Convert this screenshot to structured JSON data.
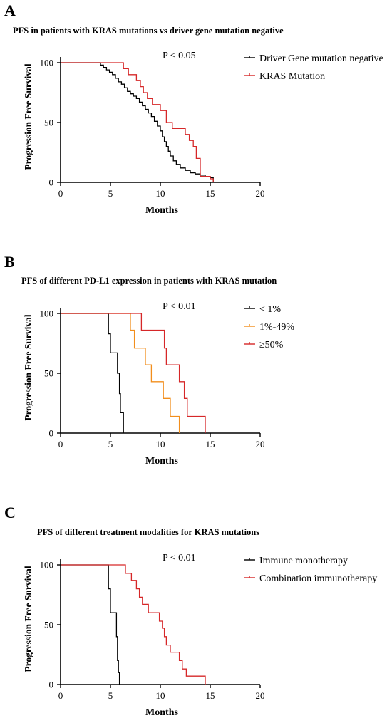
{
  "chart_data": [
    {
      "letter": "A",
      "type": "line",
      "subtype": "kaplan-meier step",
      "title": "PFS in patients with KRAS mutations vs driver gene mutation negative",
      "xlabel": "Months",
      "ylabel": "Progression Free Survival",
      "xlim": [
        0,
        20
      ],
      "ylim": [
        0,
        100
      ],
      "xticks": [
        "0",
        "5",
        "10",
        "15",
        "20"
      ],
      "yticks": [
        "0",
        "50",
        "100"
      ],
      "annotation": "P < 0.05",
      "legend_position": "top-right",
      "series": [
        {
          "name": "Driver Gene mutation negative",
          "color": "#000000",
          "x": [
            0,
            4.0,
            4.3,
            4.6,
            4.9,
            5.2,
            5.5,
            5.8,
            6.1,
            6.4,
            6.7,
            7.0,
            7.3,
            7.6,
            7.9,
            8.2,
            8.5,
            8.8,
            9.1,
            9.4,
            9.7,
            10.0,
            10.2,
            10.4,
            10.6,
            10.8,
            11.0,
            11.3,
            11.6,
            12.0,
            12.5,
            13.0,
            13.5,
            14.0,
            14.5,
            15.0,
            15.3
          ],
          "y": [
            100,
            98,
            96,
            94,
            92,
            90,
            87,
            84,
            82,
            79,
            76,
            74,
            72,
            70,
            67,
            64,
            61,
            58,
            55,
            51,
            47,
            43,
            38,
            34,
            30,
            26,
            22,
            18,
            15,
            12,
            10,
            8,
            7,
            6,
            5,
            4,
            0
          ]
        },
        {
          "name": "KRAS Mutation",
          "color": "#d62728",
          "x": [
            0,
            6.3,
            6.8,
            7.6,
            8.0,
            8.3,
            8.7,
            9.2,
            10.0,
            10.6,
            11.2,
            12.5,
            12.9,
            13.3,
            13.6,
            14.0,
            15.0,
            15.3
          ],
          "y": [
            100,
            95,
            90,
            85,
            80,
            75,
            70,
            65,
            60,
            50,
            45,
            40,
            35,
            30,
            20,
            5,
            3,
            0
          ]
        }
      ]
    },
    {
      "letter": "B",
      "type": "line",
      "subtype": "kaplan-meier step",
      "title": "PFS of different PD-L1 expression in patients with KRAS mutation",
      "xlabel": "Months",
      "ylabel": "Progression Free Survival",
      "xlim": [
        0,
        20
      ],
      "ylim": [
        0,
        100
      ],
      "xticks": [
        "0",
        "5",
        "10",
        "15",
        "20"
      ],
      "yticks": [
        "0",
        "50",
        "100"
      ],
      "annotation": "P < 0.01",
      "legend_position": "top-right",
      "series": [
        {
          "name": "< 1%",
          "color": "#000000",
          "x": [
            0,
            4.8,
            5.0,
            5.7,
            5.9,
            6.0,
            6.3
          ],
          "y": [
            100,
            83,
            67,
            50,
            33,
            17,
            0
          ]
        },
        {
          "name": "1%-49%",
          "color": "#f28e1c",
          "x": [
            0,
            7.0,
            7.4,
            8.5,
            9.1,
            10.3,
            11.0,
            11.9
          ],
          "y": [
            100,
            86,
            71,
            57,
            43,
            29,
            14,
            0
          ]
        },
        {
          "name": "≥50%",
          "color": "#d62728",
          "x": [
            0,
            8.1,
            10.4,
            10.6,
            11.9,
            12.4,
            12.7,
            14.5
          ],
          "y": [
            100,
            86,
            71,
            57,
            43,
            29,
            14,
            0
          ]
        }
      ]
    },
    {
      "letter": "C",
      "type": "line",
      "subtype": "kaplan-meier step",
      "title": "PFS of different treatment modalities for KRAS mutations",
      "xlabel": "Months",
      "ylabel": "Progression Free Survival",
      "xlim": [
        0,
        20
      ],
      "ylim": [
        0,
        100
      ],
      "xticks": [
        "0",
        "5",
        "10",
        "15",
        "20"
      ],
      "yticks": [
        "0",
        "50",
        "100"
      ],
      "annotation": "P < 0.01",
      "legend_position": "top-right",
      "series": [
        {
          "name": "Immune monotherapy",
          "color": "#000000",
          "x": [
            0,
            4.8,
            5.0,
            5.6,
            5.7,
            5.8,
            5.9
          ],
          "y": [
            100,
            80,
            60,
            40,
            20,
            10,
            0
          ]
        },
        {
          "name": "Combination immunotherapy",
          "color": "#d62728",
          "x": [
            0,
            6.5,
            7.1,
            7.6,
            7.9,
            8.2,
            8.8,
            9.9,
            10.2,
            10.4,
            10.6,
            11.0,
            11.9,
            12.2,
            12.6,
            14.5
          ],
          "y": [
            100,
            93,
            87,
            80,
            73,
            67,
            60,
            53,
            47,
            40,
            33,
            27,
            20,
            13,
            7,
            0
          ]
        }
      ]
    }
  ]
}
